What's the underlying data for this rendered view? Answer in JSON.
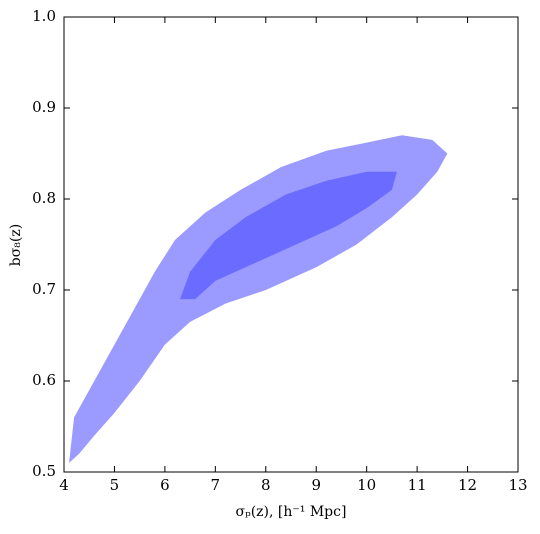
{
  "chart_data": {
    "type": "contour",
    "xlabel": "σₚ(z), [h⁻¹ Mpc]",
    "ylabel": "bσ₈(z)",
    "xlim": [
      4,
      13
    ],
    "xticks": [
      4,
      5,
      6,
      7,
      8,
      9,
      10,
      11,
      12,
      13
    ],
    "ylim": [
      0.5,
      1.0
    ],
    "yticks": [
      0.5,
      0.6,
      0.7,
      0.8,
      0.9,
      {
        "value": 1.0,
        "label": "1.0"
      }
    ],
    "series": [
      {
        "color": "#9b9bff",
        "x": [
          4.1,
          4.2,
          4.6,
          5.0,
          5.4,
          5.8,
          6.2,
          6.8,
          7.5,
          8.3,
          9.2,
          10.0,
          10.7,
          11.3,
          11.6,
          11.4,
          11.0,
          10.5,
          9.8,
          9.0,
          8.0,
          7.2,
          6.5,
          6.0,
          5.5,
          5.0,
          4.6,
          4.3
        ],
        "y": [
          0.51,
          0.56,
          0.6,
          0.64,
          0.68,
          0.72,
          0.755,
          0.785,
          0.81,
          0.835,
          0.853,
          0.862,
          0.87,
          0.865,
          0.85,
          0.83,
          0.805,
          0.78,
          0.75,
          0.725,
          0.7,
          0.685,
          0.665,
          0.64,
          0.6,
          0.565,
          0.54,
          0.52
        ]
      },
      {
        "color": "#6b6bff",
        "x": [
          6.3,
          6.5,
          7.0,
          7.6,
          8.4,
          9.2,
          10.0,
          10.6,
          10.5,
          10.0,
          9.4,
          8.6,
          7.8,
          7.0,
          6.6
        ],
        "y": [
          0.69,
          0.72,
          0.755,
          0.78,
          0.805,
          0.82,
          0.83,
          0.83,
          0.81,
          0.79,
          0.77,
          0.75,
          0.73,
          0.71,
          0.69
        ]
      }
    ]
  }
}
